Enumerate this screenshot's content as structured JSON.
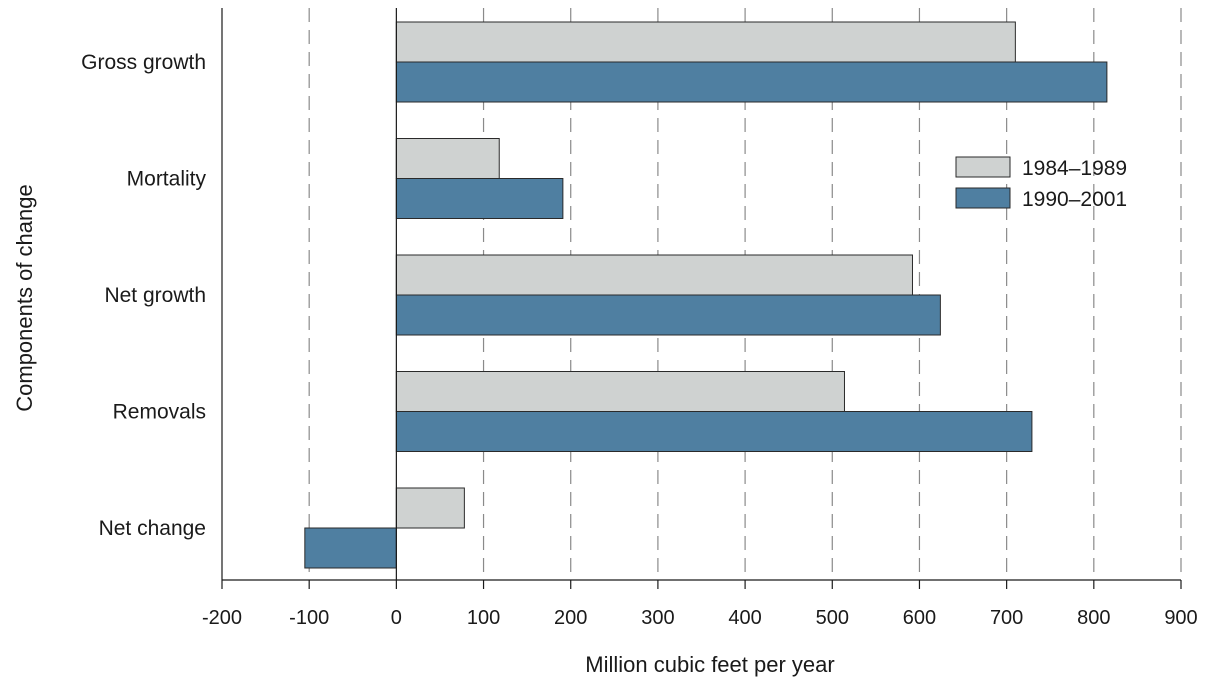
{
  "chart_data": {
    "type": "bar",
    "orientation": "horizontal",
    "title": "",
    "xlabel": "Million cubic feet per year",
    "ylabel": "Components of change",
    "categories": [
      "Gross growth",
      "Mortality",
      "Net growth",
      "Removals",
      "Net change"
    ],
    "series": [
      {
        "name": "1984–1989",
        "values": [
          710,
          118,
          592,
          514,
          78
        ]
      },
      {
        "name": "1990–2001",
        "values": [
          815,
          191,
          624,
          729,
          -105
        ]
      }
    ],
    "xlim": [
      -200,
      900
    ],
    "xticks": [
      -200,
      -100,
      0,
      100,
      200,
      300,
      400,
      500,
      600,
      700,
      800,
      900
    ],
    "grid": "vertical dashed",
    "legend_position": "right",
    "colors": {
      "1984–1989": "#cfd2d1",
      "1990–2001": "#4f7fa1"
    }
  }
}
